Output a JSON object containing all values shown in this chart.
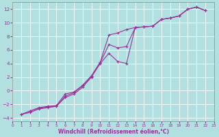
{
  "title": "",
  "xlabel": "Windchill (Refroidissement éolien,°C)",
  "ylabel": "",
  "background_color": "#b2e0e0",
  "grid_color": "#ffffff",
  "line_color": "#993399",
  "xlim": [
    0,
    23
  ],
  "ylim": [
    -4.5,
    13
  ],
  "xticks": [
    0,
    1,
    2,
    3,
    4,
    5,
    6,
    7,
    8,
    9,
    10,
    11,
    12,
    13,
    14,
    15,
    16,
    17,
    18,
    19,
    20,
    21,
    22,
    23
  ],
  "yticks": [
    -4,
    -2,
    0,
    2,
    4,
    6,
    8,
    10,
    12
  ],
  "line1_x": [
    1,
    2,
    3,
    4,
    5,
    6,
    7,
    8,
    9,
    10,
    11,
    12,
    13,
    14,
    15,
    16,
    17,
    18,
    19,
    20,
    21,
    22
  ],
  "line1_y": [
    -3.5,
    -3.2,
    -2.7,
    -2.5,
    -2.3,
    -1.0,
    -0.5,
    0.5,
    2.0,
    4.0,
    5.5,
    4.3,
    4.0,
    9.3,
    9.4,
    9.5,
    10.5,
    10.7,
    11.0,
    12.0,
    12.3,
    11.8
  ],
  "line2_x": [
    1,
    2,
    3,
    4,
    5,
    6,
    7,
    8,
    9,
    10,
    11,
    12,
    13,
    14,
    15,
    16,
    17,
    18,
    19,
    20,
    21,
    22
  ],
  "line2_y": [
    -3.5,
    -3.0,
    -2.5,
    -2.3,
    -2.2,
    -0.5,
    -0.2,
    0.8,
    2.2,
    4.2,
    8.2,
    8.5,
    9.0,
    9.3,
    9.4,
    9.5,
    10.5,
    10.7,
    11.0,
    12.0,
    12.3,
    11.8
  ],
  "line3_x": [
    1,
    2,
    3,
    4,
    5,
    6,
    7,
    8,
    9,
    10,
    11,
    12,
    13,
    14,
    15,
    16,
    17,
    18,
    19,
    20,
    21,
    22
  ],
  "line3_y": [
    -3.5,
    -3.0,
    -2.6,
    -2.4,
    -2.3,
    -0.8,
    -0.3,
    0.7,
    2.1,
    4.1,
    6.8,
    6.3,
    6.5,
    9.3,
    9.4,
    9.5,
    10.5,
    10.7,
    11.0,
    12.0,
    12.3,
    11.8
  ]
}
